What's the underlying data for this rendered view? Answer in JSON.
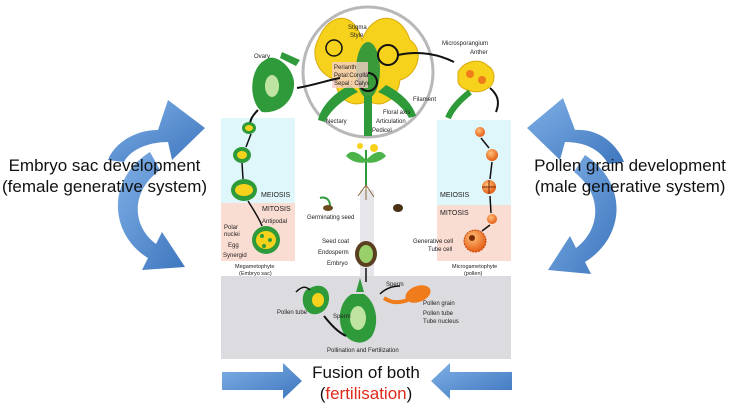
{
  "left_label": {
    "line1": "Embryo sac development",
    "line2": "(female generative system)"
  },
  "right_label": {
    "line1": "Pollen grain development",
    "line2": "(male generative system)"
  },
  "bottom_label": {
    "line1": "Fusion of both",
    "open": "(",
    "highlight": "fertilisation",
    "close": ")"
  },
  "flower_labels": {
    "stigma": "Stigma",
    "style": "Style",
    "ovary": "Ovary",
    "perianth": "Perianth",
    "petal_corolla": "Petal:Corolla",
    "sepal_calyx": "Sepal : Calyx",
    "floral_axis": "Floral axis",
    "articulation": "Articulation",
    "nectary": "Nectary",
    "pedicel": "Pedicel",
    "filament": "Filament",
    "microsporangium": "Microsporangium",
    "anther": "Anther"
  },
  "female_labels": {
    "meiosis": "MEIOSIS",
    "mitosis": "MITOSIS",
    "antipodal": "Antipodal",
    "polar_nuclei_1": "Polar",
    "polar_nuclei_2": "nuclei",
    "egg": "Egg",
    "synergid": "Synergid",
    "megagametophyte_1": "Megametophyte",
    "megagametophyte_2": "(Embryo sac)"
  },
  "male_labels": {
    "meiosis": "MEIOSIS",
    "mitosis": "MITOSIS",
    "generative_cell": "Generative cell",
    "tube_cell": "Tube cell",
    "microgametophyte_1": "Microgametophyte",
    "microgametophyte_2": "(pollen)"
  },
  "seed_labels": {
    "germinating_seed": "Germinating seed",
    "seed_coat": "Seed coat",
    "endosperm": "Endosperm",
    "embryo": "Embryo"
  },
  "fertilization_labels": {
    "sperm_left": "Sperm",
    "sperm_right": "Sperm",
    "pollen_tube_left": "Pollen tube",
    "pollen_grain": "Pollen grain",
    "pollen_tube_right": "Pollen tube",
    "tube_nucleus": "Tube nucleus",
    "title": "Pollination and Fertilization"
  },
  "colors": {
    "arrow_blue": "#5b8fcf",
    "meiosis_bg": "#dff6fa",
    "mitosis_bg": "#f9dcd2",
    "fertilization_bg": "#dcdce0",
    "plant_green": "#2e9a3a",
    "flower_yellow": "#f6d21c",
    "pollen_orange": "#f07b1b",
    "highlight_red": "#e0291b"
  }
}
